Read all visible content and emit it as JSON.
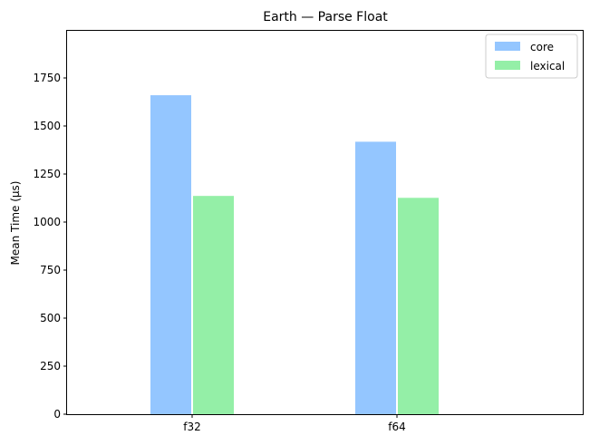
{
  "chart_data": {
    "type": "bar",
    "title": "Earth — Parse Float",
    "ylabel": "Mean Time (µs)",
    "xlabel": "",
    "categories": [
      "f32",
      "f64"
    ],
    "series": [
      {
        "name": "core",
        "color": "#94c6ff",
        "values": [
          1660,
          1418
        ]
      },
      {
        "name": "lexical",
        "color": "#94efa7",
        "values": [
          1136,
          1126
        ]
      }
    ],
    "ylim": [
      0,
      2000
    ],
    "yticks": [
      0,
      250,
      500,
      750,
      1000,
      1250,
      1500,
      1750
    ],
    "legend_position": "top-right",
    "grid": false
  }
}
